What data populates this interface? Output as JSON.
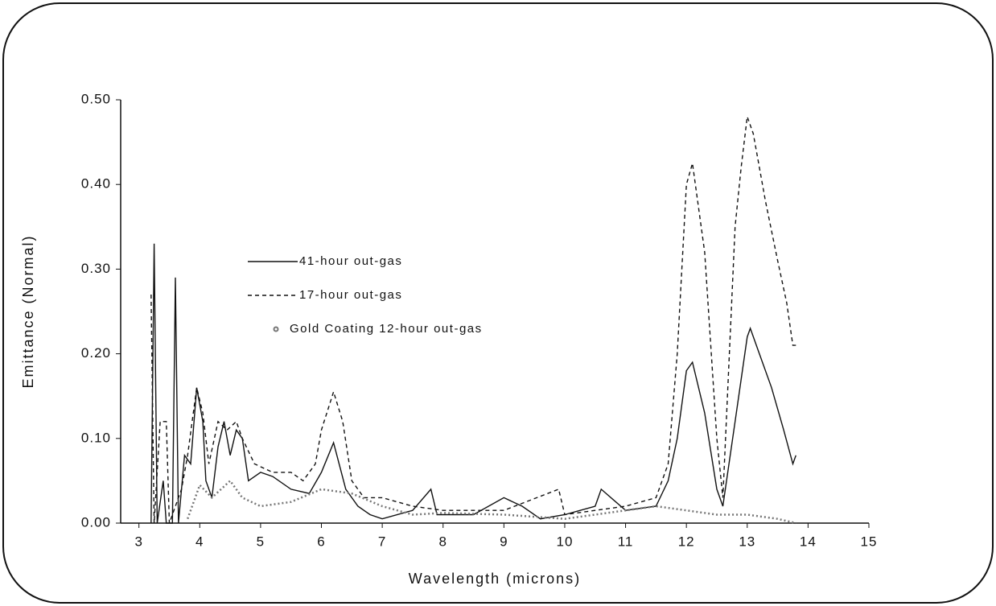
{
  "chart_data": {
    "type": "line",
    "xlabel": "Wavelength (microns)",
    "ylabel": "Emittance (Normal)",
    "xlim": [
      2.7,
      15
    ],
    "xticks": [
      3,
      4,
      5,
      6,
      7,
      8,
      9,
      10,
      11,
      12,
      13,
      14,
      15
    ],
    "ylim": [
      0,
      0.5
    ],
    "yticks": [
      {
        "value": 0,
        "label": "0.00"
      },
      {
        "value": 0.1,
        "label": "0.10"
      },
      {
        "value": 0.2,
        "label": "0.20"
      },
      {
        "value": 0.3,
        "label": "0.30"
      },
      {
        "value": 0.4,
        "label": "0.40"
      },
      {
        "value": 0.5,
        "label": "0.50"
      }
    ],
    "grid": false,
    "series": [
      {
        "name": "41-hour out-gas",
        "color": "#111111",
        "dash": "solid",
        "x": [
          3.2,
          3.25,
          3.3,
          3.4,
          3.45,
          3.55,
          3.6,
          3.65,
          3.75,
          3.85,
          3.95,
          4.05,
          4.1,
          4.2,
          4.3,
          4.4,
          4.5,
          4.6,
          4.7,
          4.8,
          5.0,
          5.2,
          5.5,
          5.8,
          6.0,
          6.2,
          6.4,
          6.6,
          6.8,
          7.0,
          7.5,
          7.8,
          7.9,
          8.5,
          9.0,
          9.3,
          9.6,
          10.0,
          10.5,
          10.6,
          11.0,
          11.5,
          11.7,
          11.85,
          12.0,
          12.1,
          12.3,
          12.5,
          12.6,
          12.8,
          13.0,
          13.05,
          13.2,
          13.4,
          13.6,
          13.75,
          13.8
        ],
        "values": [
          0,
          0.33,
          0,
          0.05,
          0,
          0,
          0.29,
          0,
          0.08,
          0.07,
          0.16,
          0.12,
          0.05,
          0.03,
          0.09,
          0.12,
          0.08,
          0.11,
          0.1,
          0.05,
          0.06,
          0.055,
          0.04,
          0.035,
          0.06,
          0.095,
          0.04,
          0.02,
          0.01,
          0.005,
          0.015,
          0.04,
          0.01,
          0.01,
          0.03,
          0.02,
          0.005,
          0.01,
          0.02,
          0.04,
          0.015,
          0.02,
          0.05,
          0.1,
          0.18,
          0.19,
          0.13,
          0.04,
          0.02,
          0.12,
          0.22,
          0.23,
          0.2,
          0.16,
          0.11,
          0.07,
          0.08
        ]
      },
      {
        "name": "17-hour out-gas",
        "color": "#111111",
        "dash": "dashed",
        "x": [
          3.2,
          3.25,
          3.35,
          3.45,
          3.5,
          3.7,
          3.8,
          3.95,
          4.05,
          4.15,
          4.3,
          4.45,
          4.6,
          4.7,
          4.9,
          5.2,
          5.5,
          5.7,
          5.9,
          6.0,
          6.2,
          6.35,
          6.5,
          6.7,
          7.0,
          7.5,
          8.0,
          9.0,
          9.9,
          10.0,
          10.5,
          11.0,
          11.5,
          11.7,
          11.85,
          12.0,
          12.1,
          12.3,
          12.5,
          12.6,
          12.8,
          12.9,
          13.0,
          13.1,
          13.3,
          13.5,
          13.65,
          13.75,
          13.8
        ],
        "values": [
          0.27,
          0,
          0.12,
          0.12,
          0,
          0.04,
          0.08,
          0.16,
          0.13,
          0.07,
          0.12,
          0.11,
          0.12,
          0.1,
          0.07,
          0.06,
          0.06,
          0.05,
          0.07,
          0.11,
          0.155,
          0.12,
          0.05,
          0.03,
          0.03,
          0.02,
          0.015,
          0.015,
          0.04,
          0.01,
          0.015,
          0.02,
          0.03,
          0.07,
          0.2,
          0.4,
          0.425,
          0.32,
          0.1,
          0.03,
          0.35,
          0.42,
          0.48,
          0.46,
          0.38,
          0.31,
          0.26,
          0.21,
          0.21
        ]
      },
      {
        "name": "Gold Coating 12-hour out-gas",
        "color": "#777777",
        "dash": "dotted",
        "x": [
          3.8,
          4.0,
          4.2,
          4.5,
          4.7,
          5.0,
          5.5,
          6.0,
          6.5,
          7.0,
          7.5,
          8.0,
          9.0,
          10.0,
          11.0,
          11.5,
          12.0,
          12.5,
          13.0,
          13.5,
          13.8
        ],
        "values": [
          0.005,
          0.045,
          0.03,
          0.05,
          0.03,
          0.02,
          0.025,
          0.04,
          0.035,
          0.02,
          0.01,
          0.012,
          0.01,
          0.005,
          0.015,
          0.02,
          0.015,
          0.01,
          0.01,
          0.005,
          0
        ]
      }
    ]
  }
}
